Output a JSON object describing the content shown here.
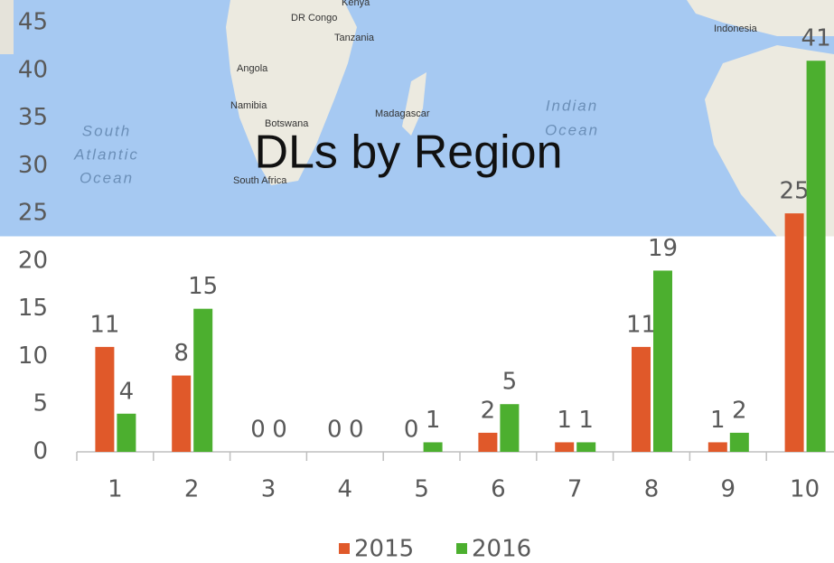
{
  "chart_data": {
    "type": "bar",
    "title": "DLs by Region",
    "categories": [
      "1",
      "2",
      "3",
      "4",
      "5",
      "6",
      "7",
      "8",
      "9",
      "10"
    ],
    "series": [
      {
        "name": "2015",
        "color": "#e0592a",
        "values": [
          11,
          8,
          0,
          0,
          0,
          2,
          1,
          11,
          1,
          25
        ]
      },
      {
        "name": "2016",
        "color": "#4caf2f",
        "values": [
          4,
          15,
          0,
          0,
          1,
          5,
          1,
          19,
          2,
          41
        ]
      }
    ],
    "ylim": [
      0,
      45
    ],
    "yticks": [
      0,
      5,
      10,
      15,
      20,
      25,
      30,
      35,
      40,
      45
    ],
    "legend": "bottom"
  },
  "map_labels": {
    "kenya": "Kenya",
    "dr_congo": "DR Congo",
    "tanzania": "Tanzania",
    "angola": "Angola",
    "namibia": "Namibia",
    "botswana": "Botswana",
    "madagascar": "Madagascar",
    "south_africa": "South Africa",
    "indonesia": "Indonesia",
    "atlantic": [
      "South",
      "Atlantic",
      "Ocean"
    ],
    "indian": [
      "Indian",
      "Ocean"
    ]
  }
}
